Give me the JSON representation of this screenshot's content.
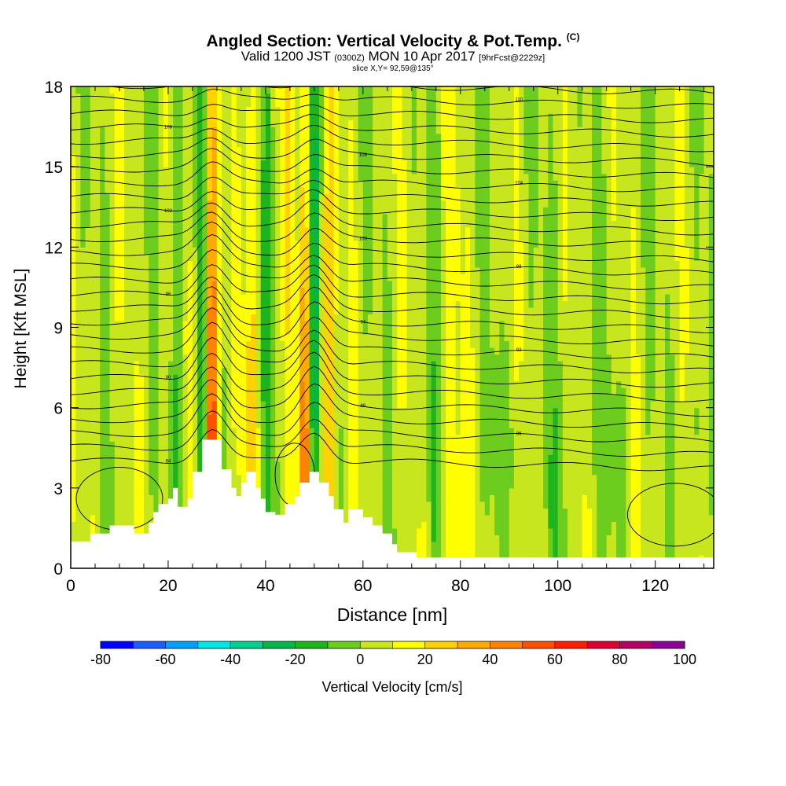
{
  "title": {
    "line1": "Angled Section: Vertical Velocity & Pot.Temp.",
    "line1_suffix": "(C)",
    "line2_pre": "Valid 1200 JST",
    "line2_small1": "(0300Z)",
    "line2_mid": "MON 10 Apr 2017",
    "line2_small2": "[9hrFcst@2229z]",
    "line3": "slice X,Y= 92,59@135°"
  },
  "chart_data": {
    "type": "heatmap",
    "xlabel": "Distance [nm]",
    "ylabel": "Height [Kft MSL]",
    "xlim": [
      0,
      132
    ],
    "ylim": [
      0,
      18
    ],
    "x_ticks": [
      "0",
      "20",
      "40",
      "60",
      "80",
      "100",
      "120"
    ],
    "y_ticks": [
      "0",
      "3",
      "6",
      "9",
      "12",
      "15",
      "18"
    ],
    "colorbar": {
      "label": "Vertical Velocity [cm/s]",
      "tick_labels": [
        "-80",
        "-60",
        "-40",
        "-20",
        "0",
        "20",
        "40",
        "60",
        "80",
        "100"
      ],
      "colors": [
        "#0000ff",
        "#1e5cff",
        "#00a0ff",
        "#00e6e6",
        "#00d090",
        "#00b84a",
        "#1eb41e",
        "#6ccd1e",
        "#c8e61e",
        "#ffff00",
        "#ffd200",
        "#ffaa00",
        "#ff8200",
        "#ff5000",
        "#ff1e00",
        "#dc0032",
        "#b40064",
        "#8c0096"
      ]
    },
    "terrain_kft": [
      [
        0,
        1
      ],
      [
        4,
        1
      ],
      [
        4,
        1.3
      ],
      [
        8,
        1.3
      ],
      [
        8,
        1.6
      ],
      [
        13,
        1.6
      ],
      [
        13,
        1.3
      ],
      [
        16,
        1.3
      ],
      [
        16,
        1.7
      ],
      [
        17,
        1.7
      ],
      [
        17,
        2.1
      ],
      [
        18,
        2.1
      ],
      [
        18,
        2.4
      ],
      [
        20,
        2.4
      ],
      [
        20,
        2.6
      ],
      [
        21,
        2.6
      ],
      [
        21,
        3.0
      ],
      [
        22,
        3.0
      ],
      [
        22,
        2.3
      ],
      [
        24,
        2.3
      ],
      [
        24,
        2.6
      ],
      [
        25,
        2.6
      ],
      [
        25,
        3.6
      ],
      [
        27,
        3.6
      ],
      [
        27,
        4.8
      ],
      [
        31,
        4.8
      ],
      [
        31,
        3.7
      ],
      [
        33,
        3.7
      ],
      [
        33,
        3.0
      ],
      [
        34,
        3.0
      ],
      [
        34,
        2.7
      ],
      [
        35,
        2.7
      ],
      [
        35,
        3.2
      ],
      [
        36,
        3.2
      ],
      [
        36,
        3.6
      ],
      [
        38,
        3.6
      ],
      [
        38,
        3.0
      ],
      [
        39,
        3.0
      ],
      [
        39,
        2.6
      ],
      [
        40,
        2.6
      ],
      [
        40,
        2.1
      ],
      [
        42,
        2.1
      ],
      [
        42,
        2.0
      ],
      [
        44,
        2.0
      ],
      [
        44,
        2.4
      ],
      [
        46,
        2.4
      ],
      [
        46,
        2.7
      ],
      [
        47,
        2.7
      ],
      [
        47,
        3.2
      ],
      [
        49,
        3.2
      ],
      [
        49,
        3.6
      ],
      [
        51,
        3.6
      ],
      [
        51,
        3.2
      ],
      [
        53,
        3.2
      ],
      [
        53,
        2.7
      ],
      [
        54,
        2.7
      ],
      [
        54,
        2.2
      ],
      [
        56,
        2.2
      ],
      [
        56,
        1.7
      ],
      [
        57,
        1.7
      ],
      [
        57,
        2.2
      ],
      [
        60,
        2.2
      ],
      [
        60,
        1.9
      ],
      [
        62,
        1.9
      ],
      [
        62,
        1.6
      ],
      [
        64,
        1.6
      ],
      [
        64,
        1.3
      ],
      [
        66,
        1.3
      ],
      [
        66,
        0.9
      ],
      [
        67,
        0.9
      ],
      [
        67,
        0.6
      ],
      [
        71,
        0.6
      ],
      [
        71,
        0.4
      ],
      [
        132,
        0.4
      ],
      [
        132,
        0
      ],
      [
        0,
        0
      ]
    ],
    "theta_labels": [
      "84",
      "86",
      "88",
      "90",
      "92",
      "94",
      "96",
      "98",
      "100",
      "102",
      "104",
      "106",
      "108",
      "110",
      "112",
      "114",
      "116",
      "118",
      "120",
      "122",
      "124",
      "126"
    ]
  }
}
